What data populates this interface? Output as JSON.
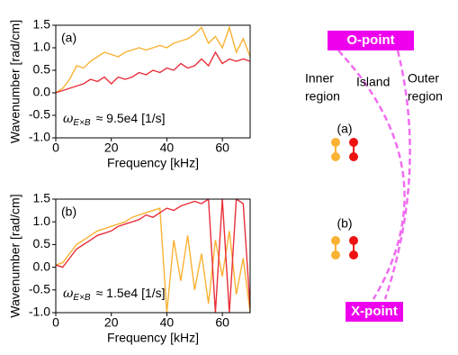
{
  "chart_data": [
    {
      "type": "line",
      "label": "(a)",
      "annotation": {
        "symbol": "ω",
        "subscript": "E×B",
        "text": "≈ 9.5e4 [1/s]"
      },
      "x_label": "Frequency [kHz]",
      "y_label": "Wavenumber [rad/cm]",
      "x": [
        0,
        2.5,
        5,
        7.5,
        10,
        12.5,
        15,
        17.5,
        20,
        22.5,
        25,
        27.5,
        30,
        32.5,
        35,
        37.5,
        40,
        42.5,
        45,
        47.5,
        50,
        52.5,
        55,
        57.5,
        60,
        62.5,
        65,
        67.5,
        70
      ],
      "series": [
        {
          "color": "#f9b233",
          "values": [
            0.0,
            0.1,
            0.3,
            0.6,
            0.55,
            0.7,
            0.8,
            0.9,
            0.85,
            0.8,
            0.9,
            0.95,
            1.0,
            0.95,
            1.0,
            1.05,
            1.0,
            1.1,
            1.15,
            1.2,
            1.3,
            1.45,
            1.1,
            1.25,
            1.0,
            1.45,
            0.9,
            1.2,
            0.8
          ]
        },
        {
          "color": "#e8303a",
          "values": [
            0.0,
            0.05,
            0.1,
            0.15,
            0.2,
            0.3,
            0.25,
            0.35,
            0.2,
            0.35,
            0.3,
            0.35,
            0.45,
            0.4,
            0.5,
            0.45,
            0.55,
            0.5,
            0.65,
            0.55,
            0.6,
            0.75,
            0.6,
            0.9,
            0.65,
            0.75,
            0.7,
            0.75,
            0.7
          ]
        }
      ],
      "xlim": [
        0,
        70
      ],
      "xticks": [
        0,
        20,
        40,
        60
      ],
      "ylim": [
        -1.0,
        1.5
      ],
      "yticks": [
        {
          "value": -1.0,
          "label": "-1.0"
        },
        {
          "value": -0.5,
          "label": "-0.5"
        },
        {
          "value": 0.0,
          "label": "0.0"
        },
        {
          "value": 0.5,
          "label": "0.5"
        },
        {
          "value": 1.0,
          "label": "1.0"
        },
        {
          "value": 1.5,
          "label": "1.5"
        }
      ]
    },
    {
      "type": "line",
      "label": "(b)",
      "annotation": {
        "symbol": "ω",
        "subscript": "E×B",
        "text": "≈ 1.5e4 [1/s]"
      },
      "x_label": "Frequency [kHz]",
      "y_label": "Wavenumber [rad/cm]",
      "x": [
        0,
        2.5,
        5,
        7.5,
        10,
        12.5,
        15,
        17.5,
        20,
        22.5,
        25,
        27.5,
        30,
        32.5,
        35,
        37.5,
        40,
        42.5,
        45,
        47.5,
        50,
        52.5,
        55,
        57.5,
        60,
        62.5,
        65,
        67.5,
        70
      ],
      "series": [
        {
          "color": "#f9b233",
          "values": [
            0.05,
            0.1,
            0.3,
            0.5,
            0.6,
            0.7,
            0.8,
            0.85,
            0.9,
            0.95,
            1.0,
            1.1,
            1.15,
            1.2,
            1.25,
            1.3,
            -1.0,
            0.6,
            -0.3,
            0.7,
            -0.5,
            0.3,
            -0.8,
            0.6,
            -0.2,
            0.8,
            -0.6,
            0.2,
            -1.0
          ]
        },
        {
          "color": "#e8303a",
          "values": [
            0.05,
            0.0,
            0.2,
            0.4,
            0.5,
            0.6,
            0.7,
            0.75,
            0.8,
            0.9,
            0.95,
            1.0,
            1.05,
            1.15,
            1.1,
            1.2,
            1.3,
            1.25,
            1.35,
            1.4,
            1.45,
            1.4,
            1.5,
            -1.0,
            1.5,
            -1.0,
            1.5,
            1.4,
            -0.9
          ]
        }
      ],
      "xlim": [
        0,
        70
      ],
      "xticks": [
        0,
        20,
        40,
        60
      ],
      "ylim": [
        -1.0,
        1.5
      ],
      "yticks": [
        {
          "value": -1.0,
          "label": "-1.0"
        },
        {
          "value": -0.5,
          "label": "-0.5"
        },
        {
          "value": 0.0,
          "label": "0.0"
        },
        {
          "value": 0.5,
          "label": "0.5"
        },
        {
          "value": 1.0,
          "label": "1.0"
        },
        {
          "value": 1.5,
          "label": "1.5"
        }
      ]
    }
  ],
  "diagram": {
    "o_point": "O-point",
    "x_point": "X-point",
    "inner_region": [
      "Inner",
      "region"
    ],
    "island": "Island",
    "outer_region": [
      "Outer",
      "region"
    ],
    "case_a": "(a)",
    "case_b": "(b)",
    "orange": "#f9b233",
    "red": "#ee1111"
  }
}
